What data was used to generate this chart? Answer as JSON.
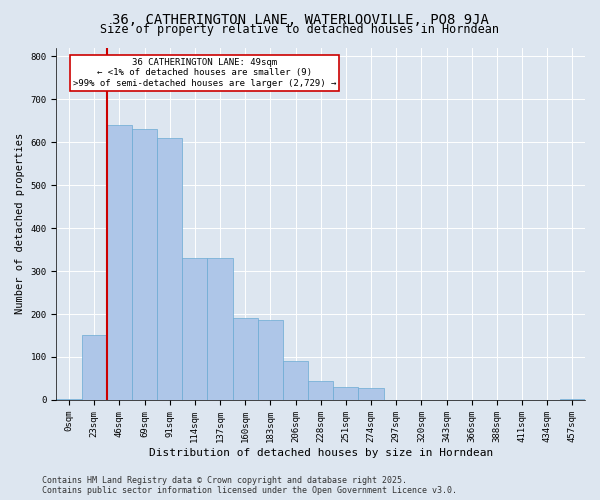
{
  "title": "36, CATHERINGTON LANE, WATERLOOVILLE, PO8 9JA",
  "subtitle": "Size of property relative to detached houses in Horndean",
  "xlabel": "Distribution of detached houses by size in Horndean",
  "ylabel": "Number of detached properties",
  "footer1": "Contains HM Land Registry data © Crown copyright and database right 2025.",
  "footer2": "Contains public sector information licensed under the Open Government Licence v3.0.",
  "annotation_line1": "36 CATHERINGTON LANE: 49sqm",
  "annotation_line2": "← <1% of detached houses are smaller (9)",
  "annotation_line3": ">99% of semi-detached houses are larger (2,729) →",
  "bar_labels": [
    "0sqm",
    "23sqm",
    "46sqm",
    "69sqm",
    "91sqm",
    "114sqm",
    "137sqm",
    "160sqm",
    "183sqm",
    "206sqm",
    "228sqm",
    "251sqm",
    "274sqm",
    "297sqm",
    "320sqm",
    "343sqm",
    "366sqm",
    "388sqm",
    "411sqm",
    "434sqm",
    "457sqm"
  ],
  "bar_values": [
    2,
    150,
    640,
    630,
    610,
    330,
    330,
    190,
    185,
    90,
    43,
    30,
    28,
    0,
    0,
    0,
    0,
    0,
    0,
    0,
    2
  ],
  "bar_color": "#aec6e8",
  "bar_edge_color": "#6aaad4",
  "vline_x_index": 2,
  "vline_color": "#cc0000",
  "annotation_box_color": "#cc0000",
  "background_color": "#dde6f0",
  "plot_bg_color": "#dde6f0",
  "ylim": [
    0,
    820
  ],
  "yticks": [
    0,
    100,
    200,
    300,
    400,
    500,
    600,
    700,
    800
  ],
  "grid_color": "#ffffff",
  "title_fontsize": 10,
  "subtitle_fontsize": 8.5,
  "xlabel_fontsize": 8,
  "ylabel_fontsize": 7.5,
  "tick_fontsize": 6.5,
  "annotation_fontsize": 6.5,
  "footer_fontsize": 6
}
